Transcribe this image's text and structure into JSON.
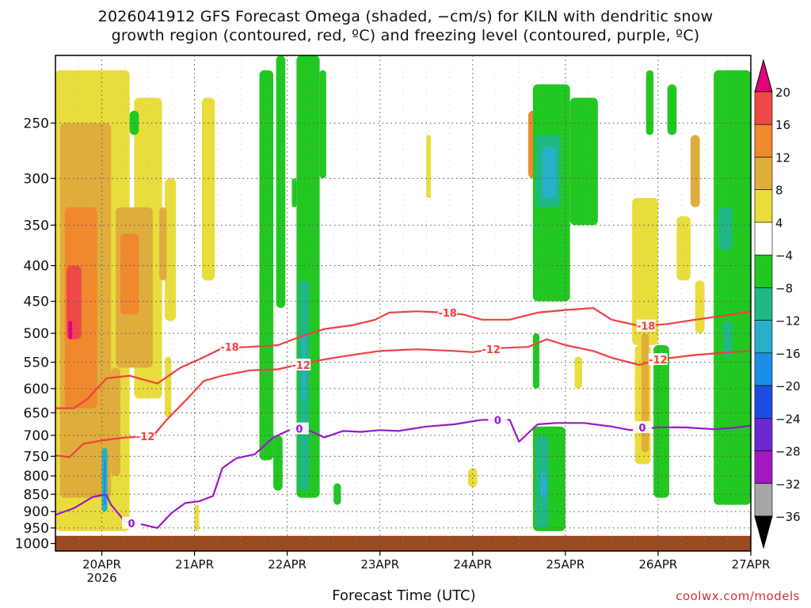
{
  "chart_data": {
    "type": "heatmap",
    "title_line1": "2026041912 GFS Forecast Omega (shaded, −cm/s) for KILN with dendritic snow",
    "title_line2": "growth region (contoured, red, ºC) and freezing level (contoured, purple, ºC)",
    "xlabel": "Forecast Time (UTC)",
    "credit": "coolwx.com/models",
    "x_ticks": [
      {
        "label": "20APR",
        "sub": "2026",
        "day": 1
      },
      {
        "label": "21APR",
        "sub": "",
        "day": 2
      },
      {
        "label": "22APR",
        "sub": "",
        "day": 3
      },
      {
        "label": "23APR",
        "sub": "",
        "day": 4
      },
      {
        "label": "24APR",
        "sub": "",
        "day": 5
      },
      {
        "label": "25APR",
        "sub": "",
        "day": 6
      },
      {
        "label": "26APR",
        "sub": "",
        "day": 7
      },
      {
        "label": "27APR",
        "sub": "",
        "day": 8
      }
    ],
    "x_range_days": [
      0.5,
      8.0
    ],
    "y_ticks": [
      "250",
      "300",
      "350",
      "400",
      "450",
      "500",
      "550",
      "600",
      "650",
      "700",
      "750",
      "800",
      "850",
      "900",
      "950",
      "1000"
    ],
    "y_range_hpa": [
      200,
      1025
    ],
    "colorbar_labels": [
      "20",
      "16",
      "12",
      "8",
      "4",
      "−4",
      "−8",
      "−12",
      "−16",
      "−20",
      "−24",
      "−28",
      "−32",
      "−36"
    ],
    "colorbar_colors": {
      "gt20": "#e0007a",
      "16to20": "#ee4848",
      "12to16": "#f0882e",
      "8to12": "#dfad3c",
      "4to8": "#e9dc3d",
      "neutral": "#ffffff",
      "m4to-8": "#22c722",
      "m8to-12": "#1fb883",
      "m12to-16": "#27b0c8",
      "m16to-20": "#1b8ee8",
      "m20to-24": "#1d4ce0",
      "m24to-28": "#6a2ad0",
      "m28to-32": "#a01ac0",
      "m32to-36": "#a6a6a6",
      "lt-36": "#000000"
    },
    "ground_color": "#9c4a22",
    "contour_colors": {
      "dgz": "#f04040",
      "freezing": "#9a18c8"
    },
    "contour_labels": {
      "m18": "-18",
      "m12": "-12",
      "zero": "0"
    },
    "contours": {
      "m18": [
        [
          0.5,
          640
        ],
        [
          0.7,
          640
        ],
        [
          0.85,
          620
        ],
        [
          1.05,
          580
        ],
        [
          1.3,
          575
        ],
        [
          1.6,
          590
        ],
        [
          1.85,
          560
        ],
        [
          2.05,
          545
        ],
        [
          2.3,
          525
        ],
        [
          2.6,
          523
        ],
        [
          2.9,
          520
        ],
        [
          3.1,
          508
        ],
        [
          3.4,
          493
        ],
        [
          3.7,
          487
        ],
        [
          3.95,
          478
        ],
        [
          4.1,
          467
        ],
        [
          4.4,
          465
        ],
        [
          4.7,
          467
        ],
        [
          4.9,
          470
        ],
        [
          5.1,
          478
        ],
        [
          5.4,
          478
        ],
        [
          5.7,
          467
        ],
        [
          6.0,
          463
        ],
        [
          6.3,
          460
        ],
        [
          6.5,
          478
        ],
        [
          6.8,
          488
        ],
        [
          7.1,
          485
        ],
        [
          7.4,
          478
        ],
        [
          7.7,
          472
        ],
        [
          8.0,
          465
        ]
      ],
      "m12": [
        [
          0.5,
          748
        ],
        [
          0.65,
          752
        ],
        [
          0.8,
          720
        ],
        [
          1.0,
          712
        ],
        [
          1.25,
          705
        ],
        [
          1.55,
          702
        ],
        [
          1.7,
          665
        ],
        [
          1.95,
          615
        ],
        [
          2.1,
          585
        ],
        [
          2.3,
          575
        ],
        [
          2.6,
          565
        ],
        [
          2.9,
          563
        ],
        [
          3.1,
          555
        ],
        [
          3.4,
          545
        ],
        [
          3.7,
          537
        ],
        [
          4.0,
          530
        ],
        [
          4.4,
          527
        ],
        [
          4.8,
          530
        ],
        [
          5.0,
          532
        ],
        [
          5.3,
          525
        ],
        [
          5.6,
          523
        ],
        [
          5.8,
          510
        ],
        [
          6.0,
          520
        ],
        [
          6.3,
          530
        ],
        [
          6.5,
          542
        ],
        [
          6.8,
          555
        ],
        [
          7.0,
          545
        ],
        [
          7.4,
          537
        ],
        [
          7.7,
          533
        ],
        [
          8.0,
          530
        ]
      ],
      "zero": [
        [
          0.5,
          910
        ],
        [
          0.7,
          890
        ],
        [
          0.9,
          858
        ],
        [
          1.0,
          852
        ],
        [
          1.05,
          852
        ],
        [
          1.1,
          880
        ],
        [
          1.25,
          930
        ],
        [
          1.45,
          940
        ],
        [
          1.6,
          950
        ],
        [
          1.75,
          905
        ],
        [
          1.9,
          875
        ],
        [
          2.05,
          870
        ],
        [
          2.2,
          855
        ],
        [
          2.3,
          780
        ],
        [
          2.45,
          755
        ],
        [
          2.65,
          745
        ],
        [
          2.85,
          705
        ],
        [
          3.0,
          690
        ],
        [
          3.1,
          683
        ],
        [
          3.25,
          690
        ],
        [
          3.4,
          705
        ],
        [
          3.6,
          690
        ],
        [
          3.8,
          692
        ],
        [
          4.0,
          688
        ],
        [
          4.2,
          690
        ],
        [
          4.5,
          680
        ],
        [
          4.8,
          675
        ],
        [
          5.1,
          665
        ],
        [
          5.4,
          665
        ],
        [
          5.5,
          715
        ],
        [
          5.7,
          675
        ],
        [
          5.9,
          672
        ],
        [
          6.2,
          672
        ],
        [
          6.5,
          680
        ],
        [
          6.7,
          688
        ],
        [
          7.0,
          682
        ],
        [
          7.3,
          682
        ],
        [
          7.6,
          686
        ],
        [
          7.8,
          683
        ],
        [
          8.0,
          678
        ]
      ]
    },
    "contour_label_points": [
      {
        "key": "m18",
        "day": 2.38,
        "hpa": 523
      },
      {
        "key": "m18",
        "day": 4.73,
        "hpa": 467
      },
      {
        "key": "m18",
        "day": 6.87,
        "hpa": 488
      },
      {
        "key": "m12",
        "day": 1.47,
        "hpa": 702
      },
      {
        "key": "m12",
        "day": 3.15,
        "hpa": 555
      },
      {
        "key": "m12",
        "day": 5.2,
        "hpa": 527
      },
      {
        "key": "m12",
        "day": 7.0,
        "hpa": 545
      },
      {
        "key": "zero",
        "day": 1.32,
        "hpa": 935
      },
      {
        "key": "zero",
        "day": 3.13,
        "hpa": 685
      },
      {
        "key": "zero",
        "day": 5.27,
        "hpa": 665
      },
      {
        "key": "zero",
        "day": 6.83,
        "hpa": 682
      }
    ],
    "shaded_regions": [
      {
        "c": "4to8",
        "d": [
          0.5,
          1.3
        ],
        "p": [
          210,
          960
        ]
      },
      {
        "c": "4to8",
        "d": [
          1.35,
          1.65
        ],
        "p": [
          230,
          620
        ]
      },
      {
        "c": "4to8",
        "d": [
          1.68,
          1.8
        ],
        "p": [
          300,
          480
        ]
      },
      {
        "c": "4to8",
        "d": [
          1.68,
          1.75
        ],
        "p": [
          540,
          660
        ]
      },
      {
        "c": "4to8",
        "d": [
          2.08,
          2.22
        ],
        "p": [
          230,
          420
        ]
      },
      {
        "c": "4to8",
        "d": [
          2.0,
          2.05
        ],
        "p": [
          880,
          960
        ]
      },
      {
        "c": "4to8",
        "d": [
          4.5,
          4.55
        ],
        "p": [
          260,
          320
        ]
      },
      {
        "c": "4to8",
        "d": [
          4.95,
          5.05
        ],
        "p": [
          780,
          830
        ]
      },
      {
        "c": "4to8",
        "d": [
          6.72,
          7.0
        ],
        "p": [
          320,
          520
        ]
      },
      {
        "c": "4to8",
        "d": [
          6.75,
          6.92
        ],
        "p": [
          520,
          770
        ]
      },
      {
        "c": "4to8",
        "d": [
          7.4,
          7.5
        ],
        "p": [
          420,
          500
        ]
      },
      {
        "c": "4to8",
        "d": [
          6.1,
          6.18
        ],
        "p": [
          540,
          600
        ]
      },
      {
        "c": "4to8",
        "d": [
          7.2,
          7.35
        ],
        "p": [
          340,
          420
        ]
      },
      {
        "c": "8to12",
        "d": [
          0.55,
          1.1
        ],
        "p": [
          250,
          860
        ]
      },
      {
        "c": "8to12",
        "d": [
          1.15,
          1.55
        ],
        "p": [
          330,
          560
        ]
      },
      {
        "c": "8to12",
        "d": [
          1.62,
          1.7
        ],
        "p": [
          330,
          420
        ]
      },
      {
        "c": "8to12",
        "d": [
          1.1,
          1.2
        ],
        "p": [
          560,
          800
        ]
      },
      {
        "c": "8to12",
        "d": [
          6.82,
          6.9
        ],
        "p": [
          500,
          740
        ]
      },
      {
        "c": "8to12",
        "d": [
          7.35,
          7.45
        ],
        "p": [
          260,
          330
        ]
      },
      {
        "c": "8to12",
        "d": [
          5.75,
          5.8
        ],
        "p": [
          300,
          340
        ]
      },
      {
        "c": "12to16",
        "d": [
          0.6,
          0.95
        ],
        "p": [
          330,
          640
        ]
      },
      {
        "c": "12to16",
        "d": [
          1.2,
          1.4
        ],
        "p": [
          360,
          470
        ]
      },
      {
        "c": "12to16",
        "d": [
          5.6,
          5.7
        ],
        "p": [
          240,
          300
        ]
      },
      {
        "c": "16to20",
        "d": [
          0.62,
          0.78
        ],
        "p": [
          400,
          510
        ]
      },
      {
        "c": "gt20",
        "d": [
          0.64,
          0.68
        ],
        "p": [
          480,
          510
        ]
      },
      {
        "c": "m4to-8",
        "d": [
          1.3,
          1.4
        ],
        "p": [
          240,
          260
        ]
      },
      {
        "c": "m4to-8",
        "d": [
          2.7,
          2.85
        ],
        "p": [
          210,
          760
        ]
      },
      {
        "c": "m4to-8",
        "d": [
          2.88,
          2.98
        ],
        "p": [
          200,
          460
        ]
      },
      {
        "c": "m4to-8",
        "d": [
          3.05,
          3.1
        ],
        "p": [
          300,
          330
        ]
      },
      {
        "c": "m4to-8",
        "d": [
          3.1,
          3.35
        ],
        "p": [
          200,
          860
        ]
      },
      {
        "c": "m4to-8",
        "d": [
          3.35,
          3.42
        ],
        "p": [
          210,
          300
        ]
      },
      {
        "c": "m4to-8",
        "d": [
          2.85,
          2.95
        ],
        "p": [
          700,
          840
        ]
      },
      {
        "c": "m4to-8",
        "d": [
          3.5,
          3.58
        ],
        "p": [
          820,
          880
        ]
      },
      {
        "c": "m4to-8",
        "d": [
          5.65,
          6.05
        ],
        "p": [
          220,
          450
        ]
      },
      {
        "c": "m4to-8",
        "d": [
          6.05,
          6.35
        ],
        "p": [
          230,
          350
        ]
      },
      {
        "c": "m4to-8",
        "d": [
          5.65,
          5.72
        ],
        "p": [
          500,
          600
        ]
      },
      {
        "c": "m4to-8",
        "d": [
          5.65,
          6.0
        ],
        "p": [
          680,
          960
        ]
      },
      {
        "c": "m4to-8",
        "d": [
          6.95,
          7.12
        ],
        "p": [
          520,
          860
        ]
      },
      {
        "c": "m4to-8",
        "d": [
          6.87,
          6.95
        ],
        "p": [
          210,
          260
        ]
      },
      {
        "c": "m4to-8",
        "d": [
          7.6,
          8.0
        ],
        "p": [
          210,
          880
        ]
      },
      {
        "c": "m4to-8",
        "d": [
          7.1,
          7.2
        ],
        "p": [
          220,
          260
        ]
      },
      {
        "c": "m8to-12",
        "d": [
          3.12,
          3.24
        ],
        "p": [
          420,
          840
        ]
      },
      {
        "c": "m8to-12",
        "d": [
          5.68,
          5.95
        ],
        "p": [
          260,
          330
        ]
      },
      {
        "c": "m8to-12",
        "d": [
          5.68,
          5.82
        ],
        "p": [
          700,
          950
        ]
      },
      {
        "c": "m8to-12",
        "d": [
          7.65,
          7.8
        ],
        "p": [
          330,
          380
        ]
      },
      {
        "c": "m8to-12",
        "d": [
          7.7,
          7.8
        ],
        "p": [
          480,
          540
        ]
      },
      {
        "c": "m12to-16",
        "d": [
          3.16,
          3.2
        ],
        "p": [
          500,
          620
        ]
      },
      {
        "c": "m12to-16",
        "d": [
          5.75,
          5.9
        ],
        "p": [
          270,
          320
        ]
      },
      {
        "c": "m12to-16",
        "d": [
          5.73,
          5.8
        ],
        "p": [
          790,
          860
        ]
      },
      {
        "c": "m12to-16",
        "d": [
          1.0,
          1.06
        ],
        "p": [
          730,
          900
        ]
      },
      {
        "c": "m16to-20",
        "d": [
          1.02,
          1.04
        ],
        "p": [
          760,
          880
        ]
      }
    ]
  }
}
